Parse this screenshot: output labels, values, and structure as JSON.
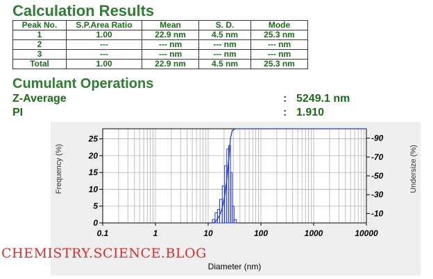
{
  "titles": {
    "results": "Calculation Results",
    "cumulant": "Cumulant Operations"
  },
  "table": {
    "headers": [
      "Peak No.",
      "S.P.Area Ratio",
      "Mean",
      "S. D.",
      "Mode"
    ],
    "rows": [
      [
        "1",
        "1.00",
        "22.9 nm",
        "4.5 nm",
        "25.3 nm"
      ],
      [
        "2",
        "---",
        "--- nm",
        "--- nm",
        "--- nm"
      ],
      [
        "3",
        "---",
        "--- nm",
        "--- nm",
        "--- nm"
      ],
      [
        "Total",
        "1.00",
        "22.9 nm",
        "4.5 nm",
        "25.3 nm"
      ]
    ]
  },
  "cumulant": {
    "zavg_label": "Z-Average",
    "zavg_sep": ":",
    "zavg_value": "5249.1 nm",
    "pi_label": "PI",
    "pi_sep": ":",
    "pi_value": "1.910"
  },
  "watermark": "CHEMISTRY.SCIENCE.BLOG",
  "colors": {
    "heading": "#2e7d32",
    "text": "#1a6b1a",
    "series": "#1f35d6",
    "watermark": "#d32f2f"
  },
  "chart_data": {
    "type": "bar",
    "xlabel": "Diameter (nm)",
    "ylabel": "Frequency (%)",
    "y2label": "Undersize (%)",
    "xscale": "log",
    "xlim": [
      0.1,
      10000
    ],
    "ylim": [
      0,
      28
    ],
    "y2lim": [
      0,
      100
    ],
    "xticks": [
      "0.1",
      "1",
      "10",
      "100",
      "1000",
      "10000"
    ],
    "yticks": [
      "0",
      "5",
      "10",
      "15",
      "20",
      "25"
    ],
    "y2ticks": [
      "10",
      "30",
      "50",
      "70",
      "90"
    ],
    "grid": true,
    "series": [
      {
        "kind": "histogram",
        "bins": [
          {
            "from": 12.0,
            "to": 13.5,
            "value": 1
          },
          {
            "from": 13.5,
            "to": 15.0,
            "value": 3
          },
          {
            "from": 15.0,
            "to": 16.5,
            "value": 4
          },
          {
            "from": 16.5,
            "to": 18.5,
            "value": 7
          },
          {
            "from": 18.5,
            "to": 20.5,
            "value": 11
          },
          {
            "from": 20.5,
            "to": 22.5,
            "value": 17
          },
          {
            "from": 22.5,
            "to": 24.5,
            "value": 22
          },
          {
            "from": 24.5,
            "to": 26.5,
            "value": 23
          },
          {
            "from": 26.5,
            "to": 28.5,
            "value": 15
          },
          {
            "from": 28.5,
            "to": 31.0,
            "value": 5
          },
          {
            "from": 31.0,
            "to": 34.0,
            "value": 1
          }
        ]
      },
      {
        "kind": "cumulative-line",
        "x": [
          12,
          13.5,
          15,
          16.5,
          18.5,
          20.5,
          22.5,
          24.5,
          26.5,
          28.5,
          31,
          34,
          10000
        ],
        "y": [
          0,
          1,
          4,
          8,
          16,
          28,
          45,
          67,
          90,
          98,
          99.5,
          100,
          100
        ]
      }
    ]
  }
}
